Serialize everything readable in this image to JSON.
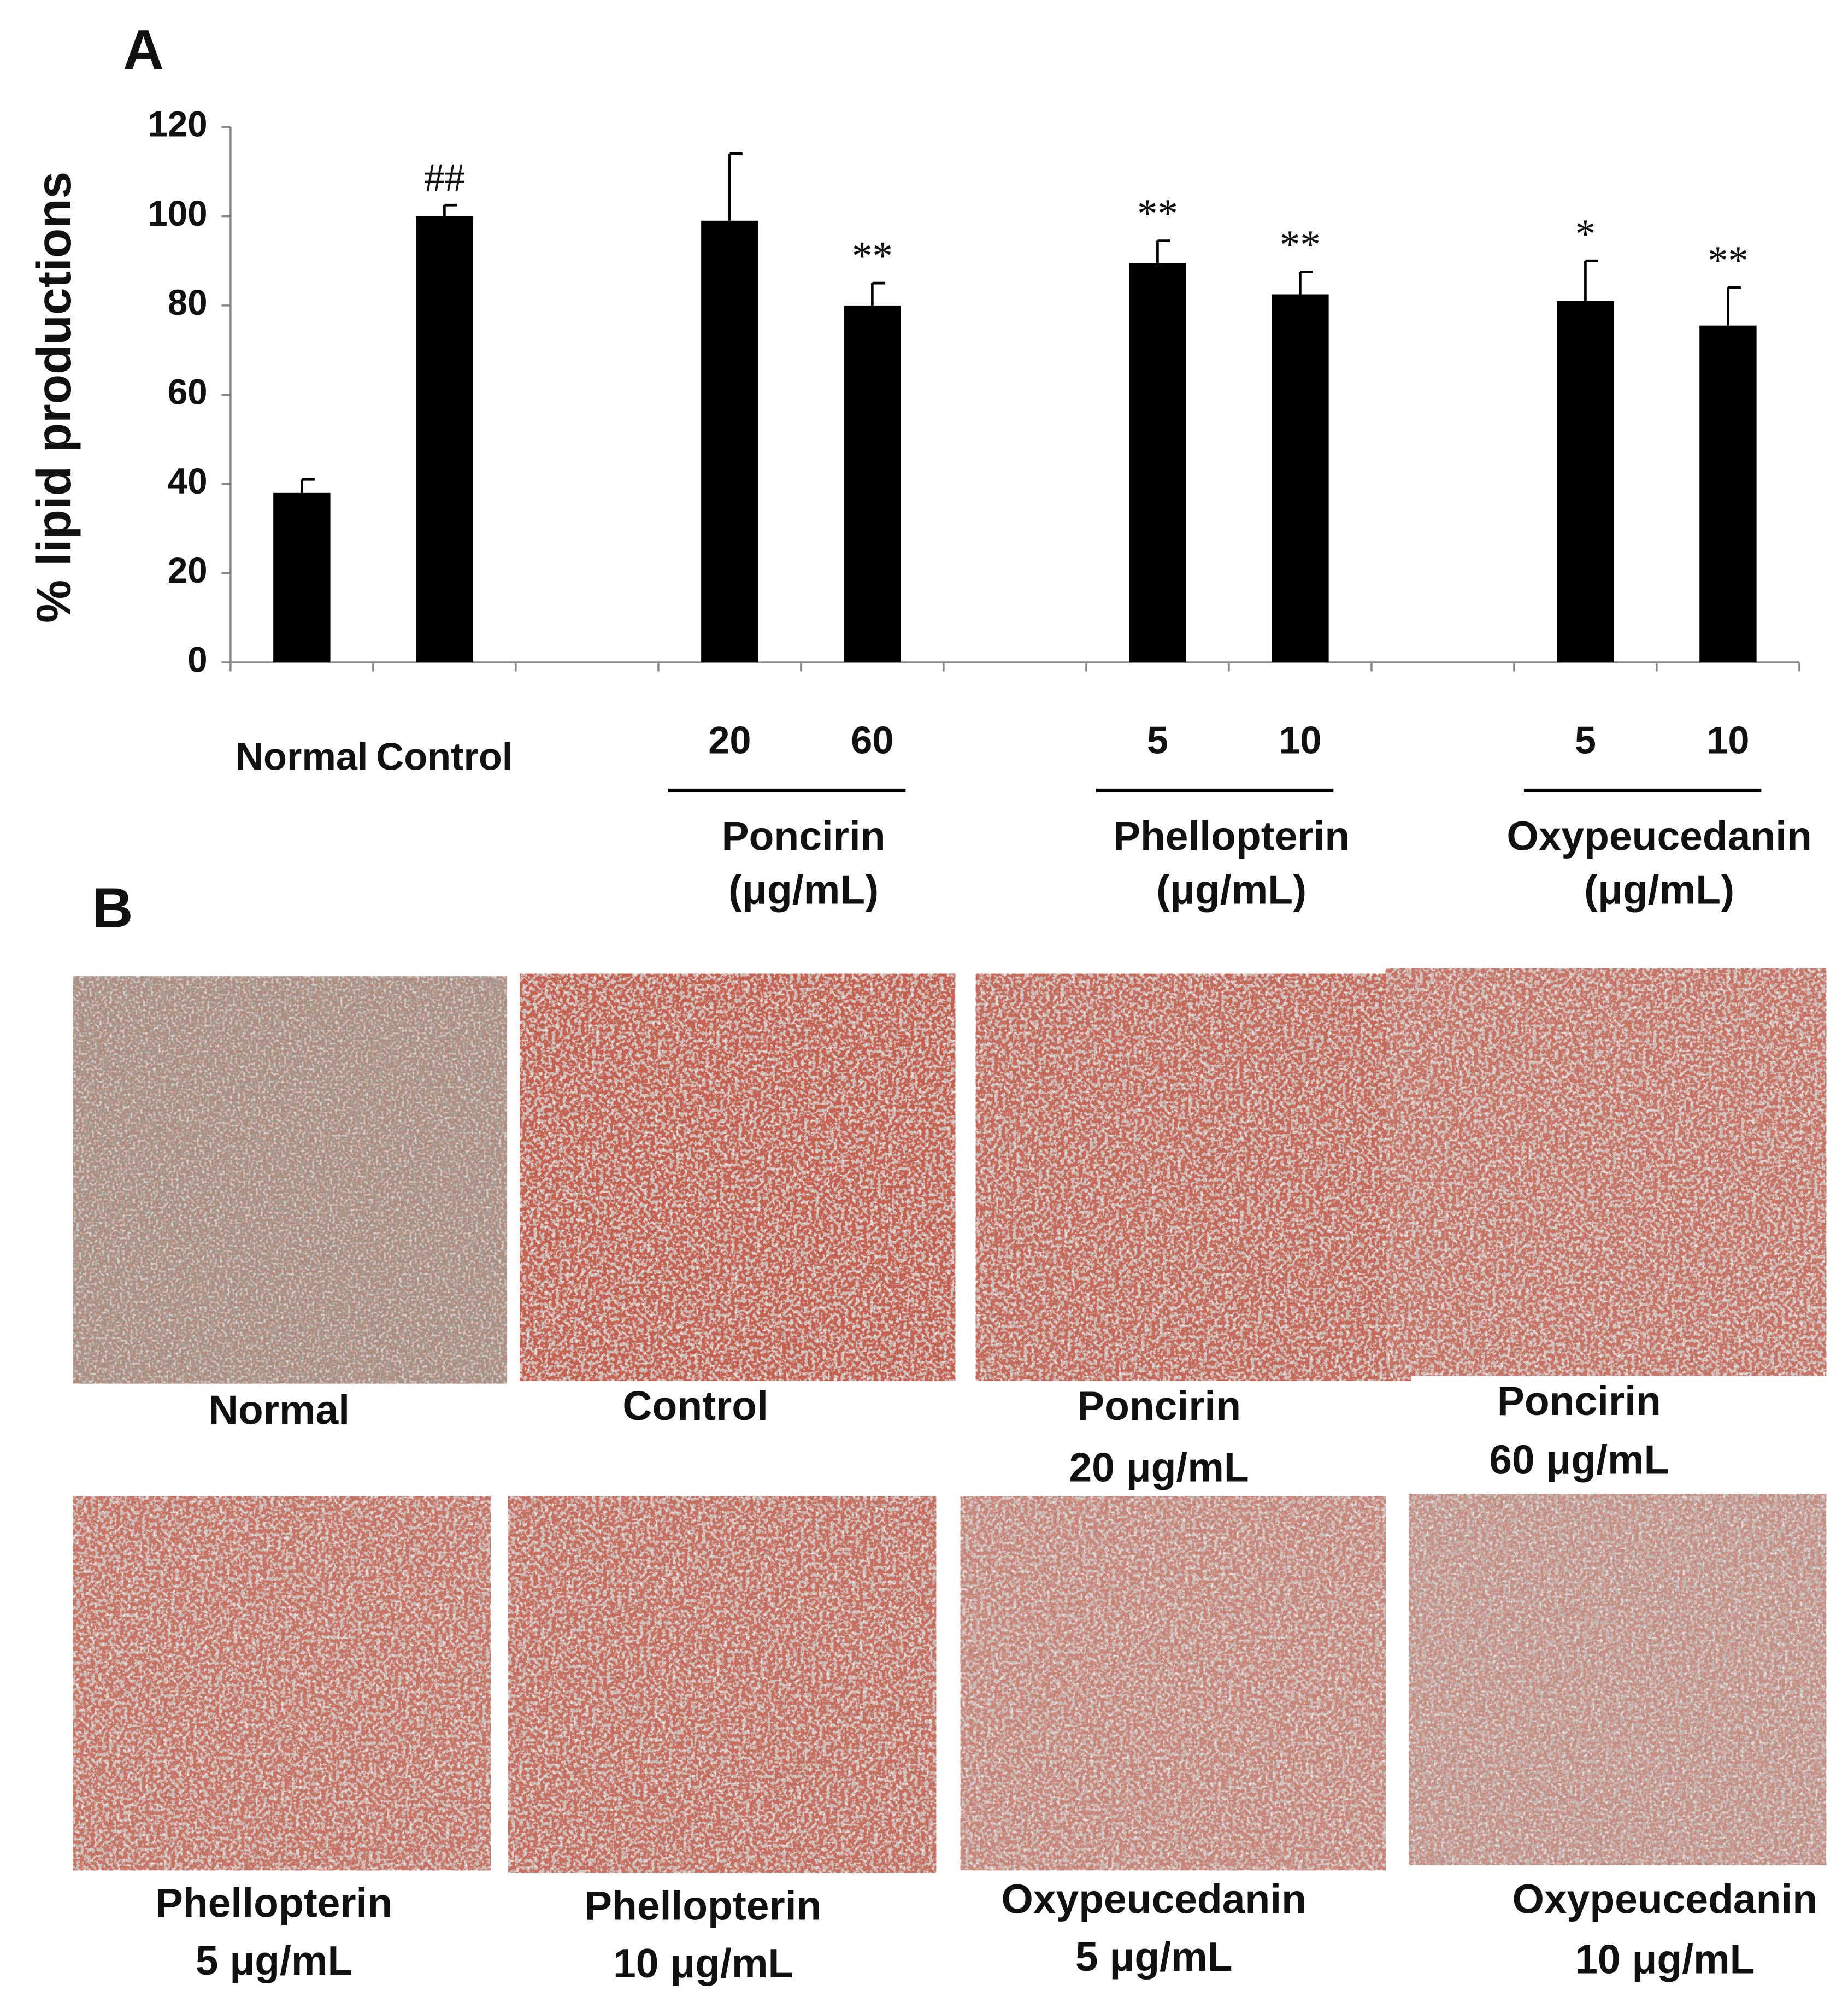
{
  "chart_data": {
    "type": "bar",
    "y_label": "% lipid productions",
    "categories": [
      "Normal",
      "Control",
      null,
      "20",
      "60",
      null,
      "5",
      "10",
      null,
      "5",
      "10"
    ],
    "values": [
      38,
      100,
      null,
      99,
      80,
      null,
      89.5,
      82.5,
      null,
      81,
      75.5
    ],
    "errors": [
      3,
      2.5,
      null,
      15,
      5,
      null,
      5,
      5,
      null,
      9,
      8.5
    ],
    "annotations": [
      null,
      "##",
      null,
      null,
      "**",
      null,
      "**",
      "**",
      null,
      "*",
      "**"
    ],
    "groups": [
      {
        "name": "Poncirin",
        "unit": "(μg/mL)"
      },
      {
        "name": "Phellopterin",
        "unit": "(μg/mL)"
      },
      {
        "name": "Oxypeucedanin",
        "unit": "(μg/mL)"
      }
    ],
    "color": "#000000",
    "ylim": [
      0,
      120
    ],
    "yticks": [
      0,
      20,
      40,
      60,
      80,
      100,
      120
    ],
    "grid": false
  },
  "panel_labels": [
    "A",
    "B"
  ],
  "panel_b": {
    "images": [
      {
        "caption": [
          "Normal"
        ]
      },
      {
        "caption": [
          "Control"
        ]
      },
      {
        "caption": [
          "Poncirin",
          "20 μg/mL"
        ]
      },
      {
        "caption": [
          "Poncirin",
          "60 μg/mL"
        ]
      },
      {
        "caption": [
          "Phellopterin",
          "5 μg/mL"
        ]
      },
      {
        "caption": [
          "Phellopterin",
          "10 μg/mL"
        ]
      },
      {
        "caption": [
          "Oxypeucedanin",
          "5 μg/mL"
        ]
      },
      {
        "caption": [
          "Oxypeucedanin",
          "10 μg/mL"
        ]
      }
    ]
  }
}
